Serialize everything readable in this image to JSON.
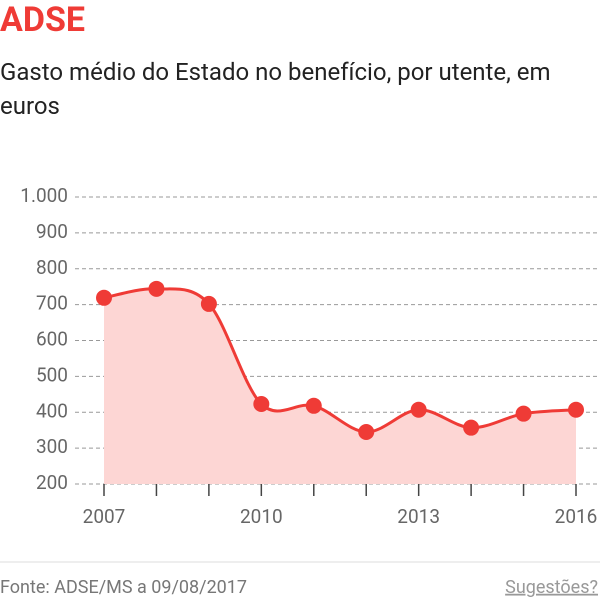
{
  "chart_data": {
    "type": "line",
    "title": "ADSE",
    "subtitle": "Gasto médio do Estado no benefício, por utente, em euros",
    "x": [
      2007,
      2008,
      2009,
      2010,
      2011,
      2012,
      2013,
      2014,
      2015,
      2016
    ],
    "series": [
      {
        "name": "Gasto médio",
        "color": "#ef3b36",
        "values": [
          719,
          744,
          702,
          423,
          418,
          345,
          407,
          357,
          396,
          407
        ]
      }
    ],
    "area_color": "#fdd6d4",
    "xlim": [
      2007,
      2016
    ],
    "xticks": [
      2007,
      2010,
      2013,
      2016
    ],
    "ylim": [
      200,
      1000
    ],
    "yticks": [
      200,
      300,
      400,
      500,
      600,
      700,
      800,
      900,
      {
        "value": 1000,
        "label": "1.000"
      }
    ],
    "grid": true,
    "source": "Fonte: ADSE/MS a 09/08/2017",
    "link": "Sugestões?"
  }
}
